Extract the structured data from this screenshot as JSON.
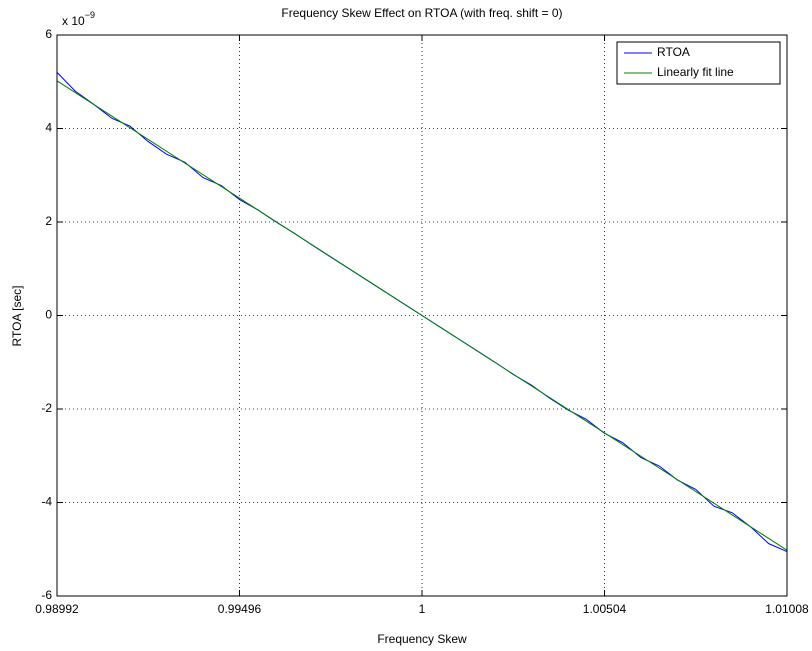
{
  "chart_data": {
    "type": "line",
    "title": "Frequency Skew Effect on RTOA (with freq. shift = 0)",
    "x_label": "Frequency Skew",
    "y_label": "RTOA [sec]",
    "y_multiplier": {
      "base": "x 10",
      "exponent": "−9"
    },
    "xlim": [
      0.98992,
      1.01008
    ],
    "xticks": [
      0.98992,
      0.99496,
      1,
      1.00504,
      1.01008
    ],
    "ylim": [
      -6,
      6
    ],
    "yticks": [
      -6,
      -4,
      -2,
      0,
      2,
      4,
      6
    ],
    "grid": true,
    "legend": "top-right",
    "series": [
      {
        "name": "RTOA",
        "color": "#0000ff",
        "x": [
          0.98992,
          0.990424,
          0.990928,
          0.991432,
          0.991936,
          0.99244,
          0.992944,
          0.993448,
          0.993952,
          0.994456,
          0.99496,
          0.995464,
          0.995968,
          0.996472,
          0.996976,
          0.99748,
          0.997984,
          0.998488,
          0.998992,
          0.999496,
          1,
          1.000504,
          1.001008,
          1.001512,
          1.002016,
          1.00252,
          1.003024,
          1.003528,
          1.004032,
          1.004536,
          1.00504,
          1.005544,
          1.006048,
          1.006552,
          1.007056,
          1.00756,
          1.008064,
          1.008568,
          1.009072,
          1.009576,
          1.01008
        ],
        "values": [
          5.2,
          4.8,
          4.52,
          4.22,
          4.05,
          3.72,
          3.45,
          3.28,
          2.95,
          2.78,
          2.48,
          2.26,
          2.0,
          1.76,
          1.5,
          1.25,
          1.0,
          0.75,
          0.5,
          0.25,
          0,
          -0.25,
          -0.5,
          -0.75,
          -1.0,
          -1.26,
          -1.49,
          -1.77,
          -2.02,
          -2.22,
          -2.52,
          -2.72,
          -3.04,
          -3.22,
          -3.52,
          -3.72,
          -4.08,
          -4.22,
          -4.52,
          -4.88,
          -5.05
        ]
      },
      {
        "name": "Linearly fit line",
        "color": "#008000",
        "x": [
          0.98992,
          1.01008
        ],
        "values": [
          5.02,
          -5.02
        ]
      }
    ]
  }
}
